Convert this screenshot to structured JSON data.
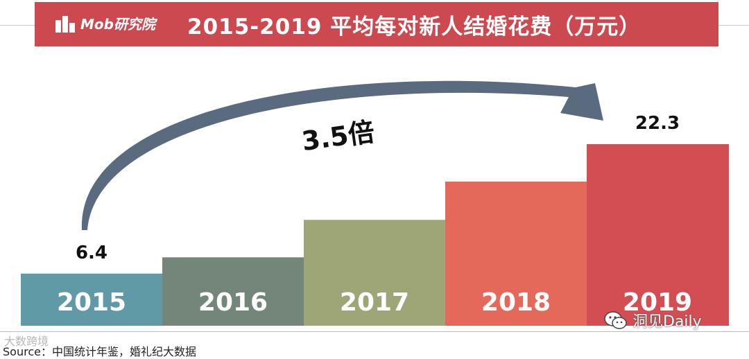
{
  "header": {
    "logo_text": "Mob研究院",
    "title": "2015-2019 平均每对新人结婚花费（万元）"
  },
  "annotation": {
    "multiplier_label": "3.5倍"
  },
  "chart_data": {
    "type": "bar",
    "title": "2015-2019 平均每对新人结婚花费（万元）",
    "categories": [
      "2015",
      "2016",
      "2017",
      "2018",
      "2019"
    ],
    "values": [
      6.4,
      8.4,
      13.0,
      17.7,
      22.3
    ],
    "data_labels": [
      "6.4",
      "",
      "",
      "",
      "22.3"
    ],
    "colors": [
      "#5f9aa6",
      "#74857a",
      "#9ea677",
      "#e5695a",
      "#d24e53"
    ],
    "category_label_color": "#ffffff",
    "ylim": [
      0,
      24
    ],
    "grid": false,
    "legend": "none"
  },
  "footer": {
    "source": "Source：中国统计年鉴，婚礼纪大数据",
    "watermark": "大数跨境",
    "wechat": "洞见Daily"
  }
}
